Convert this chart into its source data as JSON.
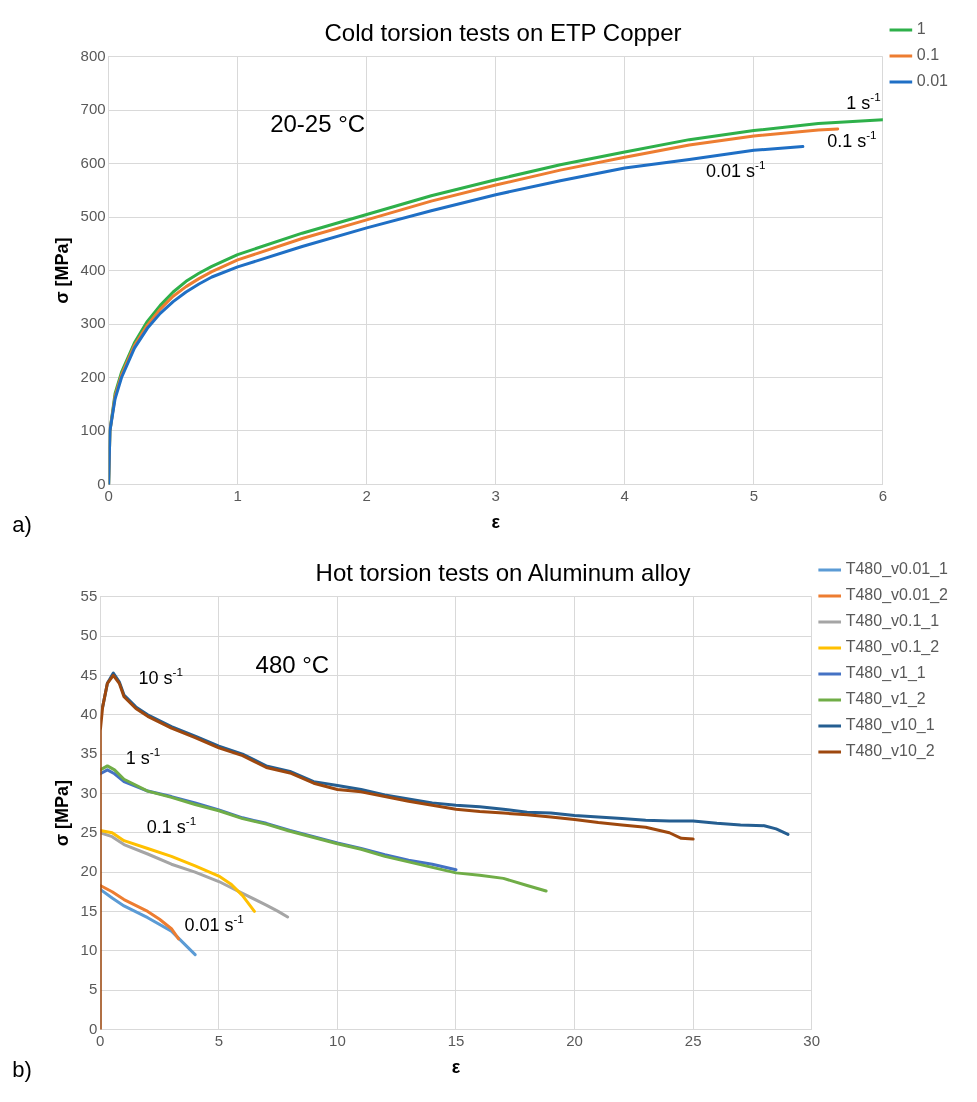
{
  "chart_data": [
    {
      "type": "line",
      "title": "Cold torsion tests on ETP Copper",
      "xlabel": "ε",
      "ylabel": "σ [MPa]",
      "xlim": [
        0,
        6
      ],
      "xticks": [
        0,
        1,
        2,
        3,
        4,
        5,
        6
      ],
      "ylim": [
        0,
        800
      ],
      "yticks": [
        0,
        100,
        200,
        300,
        400,
        500,
        600,
        700,
        800
      ],
      "grid": true,
      "legend": "right",
      "marker": "none",
      "line_style": "solid",
      "annotations": [
        "20-25 °C",
        "a)",
        "1 s$^{-1}$",
        "0.1 s$^{-1}$",
        "0.01 s$^{-1}$"
      ],
      "series": [
        {
          "name": "1",
          "color": "#2eb04a",
          "x": [
            0,
            0.01,
            0.05,
            0.1,
            0.2,
            0.3,
            0.4,
            0.5,
            0.6,
            0.7,
            0.8,
            1,
            1.5,
            2,
            2.5,
            3,
            3.5,
            4,
            4.5,
            5,
            5.5,
            6
          ],
          "values": [
            0,
            100,
            170,
            210,
            265,
            305,
            335,
            360,
            380,
            395,
            408,
            430,
            470,
            505,
            540,
            570,
            598,
            622,
            645,
            662,
            675,
            682
          ]
        },
        {
          "name": "0.1",
          "color": "#ed7d31",
          "x": [
            0,
            0.01,
            0.05,
            0.1,
            0.2,
            0.3,
            0.4,
            0.5,
            0.6,
            0.7,
            0.8,
            1,
            1.5,
            2,
            2.5,
            3,
            3.5,
            4,
            4.5,
            5,
            5.5,
            5.65
          ],
          "values": [
            0,
            100,
            165,
            205,
            260,
            298,
            328,
            352,
            370,
            385,
            398,
            420,
            460,
            495,
            530,
            560,
            588,
            612,
            635,
            652,
            663,
            665
          ]
        },
        {
          "name": "0.01",
          "color": "#1f6fc5",
          "x": [
            0,
            0.01,
            0.05,
            0.1,
            0.2,
            0.3,
            0.4,
            0.5,
            0.6,
            0.7,
            0.8,
            1,
            1.5,
            2,
            2.5,
            3,
            3.5,
            4,
            4.5,
            5,
            5.38
          ],
          "values": [
            0,
            100,
            160,
            200,
            255,
            292,
            320,
            342,
            360,
            375,
            388,
            407,
            445,
            480,
            512,
            542,
            568,
            592,
            608,
            625,
            632
          ]
        }
      ]
    },
    {
      "type": "line",
      "title": "Hot torsion tests on Aluminum alloy",
      "xlabel": "ε",
      "ylabel": "σ [MPa]",
      "xlim": [
        0,
        30
      ],
      "xticks": [
        0,
        5,
        10,
        15,
        20,
        25,
        30
      ],
      "ylim": [
        0,
        55
      ],
      "yticks": [
        0,
        5,
        10,
        15,
        20,
        25,
        30,
        35,
        40,
        45,
        50,
        55
      ],
      "grid": true,
      "legend": "right",
      "marker": "none",
      "line_style": "solid",
      "annotations": [
        "480 °C",
        "b)",
        "10 s$^{-1}$",
        "1 s$^{-1}$",
        "0.1 s$^{-1}$",
        "0.01 s$^{-1}$"
      ],
      "series": [
        {
          "name": "T480_v0.01_1",
          "color": "#5b9bd5",
          "x": [
            0,
            0.5,
            1,
            2,
            3,
            3.5,
            4
          ],
          "values": [
            17.8,
            16.7,
            15.7,
            14.2,
            12.5,
            11,
            9.5
          ]
        },
        {
          "name": "T480_v0.01_2",
          "color": "#ed7d31",
          "x": [
            0,
            0.5,
            1,
            2,
            2.5,
            3,
            3.3
          ],
          "values": [
            18.3,
            17.5,
            16.5,
            15,
            14,
            12.8,
            11.5
          ]
        },
        {
          "name": "T480_v0.1_1",
          "color": "#a5a5a5",
          "x": [
            0,
            0.5,
            1,
            2,
            3,
            4,
            5,
            6,
            7,
            7.5,
            7.9
          ],
          "values": [
            25,
            24.5,
            23.5,
            22.3,
            21,
            20,
            18.8,
            17.3,
            15.8,
            15,
            14.3
          ]
        },
        {
          "name": "T480_v0.1_2",
          "color": "#ffc000",
          "x": [
            0,
            0.5,
            1,
            2,
            3,
            4,
            5,
            5.5,
            6,
            6.5
          ],
          "values": [
            25.3,
            25,
            24,
            23,
            22,
            20.8,
            19.5,
            18.5,
            17,
            15
          ]
        },
        {
          "name": "T480_v1_1",
          "color": "#4472c4",
          "x": [
            0,
            0.3,
            0.6,
            1,
            2,
            3,
            4,
            5,
            6,
            7,
            8,
            9,
            10,
            11,
            12,
            13,
            14,
            15
          ],
          "values": [
            32.5,
            33,
            32.5,
            31.5,
            30.3,
            29.6,
            28.8,
            27.9,
            26.9,
            26.2,
            25.3,
            24.5,
            23.7,
            23,
            22.2,
            21.5,
            21,
            20.3
          ]
        },
        {
          "name": "T480_v1_2",
          "color": "#70ad47",
          "x": [
            0,
            0.3,
            0.6,
            1,
            2,
            3,
            4,
            5,
            6,
            7,
            8,
            9,
            10,
            11,
            12,
            13,
            14,
            15,
            16,
            17,
            18,
            18.8
          ],
          "values": [
            33,
            33.5,
            33,
            31.8,
            30.3,
            29.5,
            28.6,
            27.8,
            26.8,
            26.1,
            25.2,
            24.4,
            23.6,
            22.9,
            22,
            21.3,
            20.6,
            19.9,
            19.6,
            19.2,
            18.3,
            17.6
          ]
        },
        {
          "name": "T480_v10_1",
          "color": "#255e91",
          "x": [
            0.1,
            0.3,
            0.55,
            0.8,
            1,
            1.5,
            2,
            3,
            4,
            5,
            6,
            7,
            8,
            9,
            10,
            11,
            12,
            13,
            14,
            15,
            16,
            17,
            18,
            19,
            20,
            21,
            22,
            23,
            24,
            25,
            26,
            27,
            28,
            28.5,
            29
          ],
          "values": [
            41,
            44,
            45.3,
            44.2,
            42.5,
            41,
            40,
            38.5,
            37.3,
            36,
            35,
            33.5,
            32.8,
            31.5,
            31,
            30.5,
            29.8,
            29.3,
            28.8,
            28.5,
            28.3,
            28,
            27.6,
            27.5,
            27.2,
            27,
            26.8,
            26.6,
            26.5,
            26.5,
            26.2,
            26,
            25.9,
            25.5,
            24.8
          ]
        },
        {
          "name": "T480_v10_2",
          "color": "#9e480e",
          "x": [
            0,
            0,
            0.1,
            0.3,
            0.55,
            0.8,
            1,
            1.5,
            2,
            3,
            4,
            5,
            6,
            7,
            8,
            9,
            10,
            11,
            12,
            13,
            14,
            15,
            16,
            17,
            18,
            19,
            20,
            21,
            22,
            23,
            24,
            24.5,
            25
          ],
          "values": [
            0,
            38,
            41,
            44,
            45,
            44,
            42.3,
            40.8,
            39.8,
            38.3,
            37.1,
            35.8,
            34.8,
            33.3,
            32.6,
            31.3,
            30.5,
            30.2,
            29.6,
            29,
            28.5,
            28,
            27.7,
            27.5,
            27.3,
            27,
            26.7,
            26.3,
            26,
            25.7,
            25,
            24.3,
            24.2
          ]
        }
      ]
    }
  ]
}
